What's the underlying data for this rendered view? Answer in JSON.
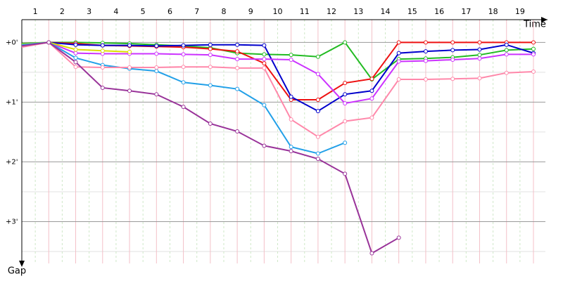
{
  "chart_data": {
    "type": "line",
    "x_label": "Time",
    "y_label": "Gap",
    "x": [
      0,
      1,
      2,
      3,
      4,
      5,
      6,
      7,
      8,
      9,
      10,
      11,
      12,
      13,
      14,
      15,
      16,
      17,
      18,
      19
    ],
    "xlim": [
      0,
      19
    ],
    "xticks": [
      {
        "value": 0.5,
        "label": "1"
      },
      {
        "value": 1.5,
        "label": "2"
      },
      {
        "value": 2.5,
        "label": "3"
      },
      {
        "value": 3.5,
        "label": "4"
      },
      {
        "value": 4.5,
        "label": "5"
      },
      {
        "value": 5.5,
        "label": "6"
      },
      {
        "value": 6.5,
        "label": "7"
      },
      {
        "value": 7.5,
        "label": "8"
      },
      {
        "value": 8.5,
        "label": "9"
      },
      {
        "value": 9.5,
        "label": "10"
      },
      {
        "value": 10.5,
        "label": "11"
      },
      {
        "value": 11.5,
        "label": "12"
      },
      {
        "value": 12.5,
        "label": "13"
      },
      {
        "value": 13.5,
        "label": "14"
      },
      {
        "value": 14.5,
        "label": "15"
      },
      {
        "value": 15.5,
        "label": "16"
      },
      {
        "value": 16.5,
        "label": "17"
      },
      {
        "value": 17.5,
        "label": "18"
      },
      {
        "value": 18.5,
        "label": "19"
      }
    ],
    "ylim": [
      -0.38,
      3.7
    ],
    "yticks": [
      {
        "value": 0,
        "label": "+0'"
      },
      {
        "value": 1,
        "label": "+1'"
      },
      {
        "value": 2,
        "label": "+2'"
      },
      {
        "value": 3,
        "label": "+3'"
      }
    ],
    "minor_yticks": [
      0.5,
      1.5,
      2.5,
      3.5
    ],
    "grid": true,
    "series": [
      {
        "color": "#22bb22",
        "values": [
          0.02,
          0,
          0,
          0.01,
          0.02,
          0.04,
          0.06,
          0.09,
          0.18,
          0.2,
          0.21,
          0.24,
          0,
          0.62,
          0.28,
          0.27,
          0.25,
          0.21,
          0.13,
          0.11
        ]
      },
      {
        "color": "#ee1111",
        "values": [
          0.07,
          0,
          0.02,
          0.05,
          0.06,
          0.07,
          0.08,
          0.11,
          0.15,
          0.35,
          0.96,
          0.96,
          0.68,
          0.61,
          0,
          0,
          0,
          0,
          0,
          0
        ]
      },
      {
        "color": "#0000cc",
        "values": [
          0.05,
          0,
          0.04,
          0.05,
          0.05,
          0.06,
          0.05,
          0.04,
          0.04,
          0.05,
          0.91,
          1.15,
          0.87,
          0.81,
          0.18,
          0.15,
          0.13,
          0.12,
          0.04,
          0.18
        ]
      },
      {
        "color": "#cc33ff",
        "values": [
          0.05,
          0,
          0.18,
          0.19,
          0.19,
          0.19,
          0.2,
          0.21,
          0.28,
          0.28,
          0.29,
          0.53,
          1.02,
          0.94,
          0.32,
          0.31,
          0.29,
          0.27,
          0.2,
          0.2
        ]
      },
      {
        "color": "#dddd00",
        "values": [
          0.03,
          0,
          0.12,
          0.14,
          0.16,
          null,
          null,
          null,
          null,
          null,
          null,
          null,
          null,
          null,
          null,
          null,
          null,
          null,
          null,
          null
        ]
      },
      {
        "color": "#22a0e8",
        "values": [
          0.04,
          0,
          0.26,
          0.38,
          0.44,
          0.48,
          0.67,
          0.72,
          0.78,
          1.05,
          1.75,
          1.86,
          1.68,
          null,
          null,
          null,
          null,
          null,
          null,
          null
        ]
      },
      {
        "color": "#ff88aa",
        "values": [
          0.08,
          0,
          0.41,
          0.42,
          0.42,
          0.42,
          0.41,
          0.41,
          0.43,
          0.43,
          1.29,
          1.58,
          1.32,
          1.26,
          0.62,
          0.62,
          0.61,
          0.6,
          0.51,
          0.49
        ]
      },
      {
        "color": "#993399",
        "values": [
          0.06,
          0,
          0.33,
          0.76,
          0.81,
          0.87,
          1.08,
          1.36,
          1.49,
          1.73,
          1.82,
          1.95,
          2.2,
          3.53,
          3.27,
          null,
          null,
          null,
          null,
          null
        ]
      }
    ]
  }
}
